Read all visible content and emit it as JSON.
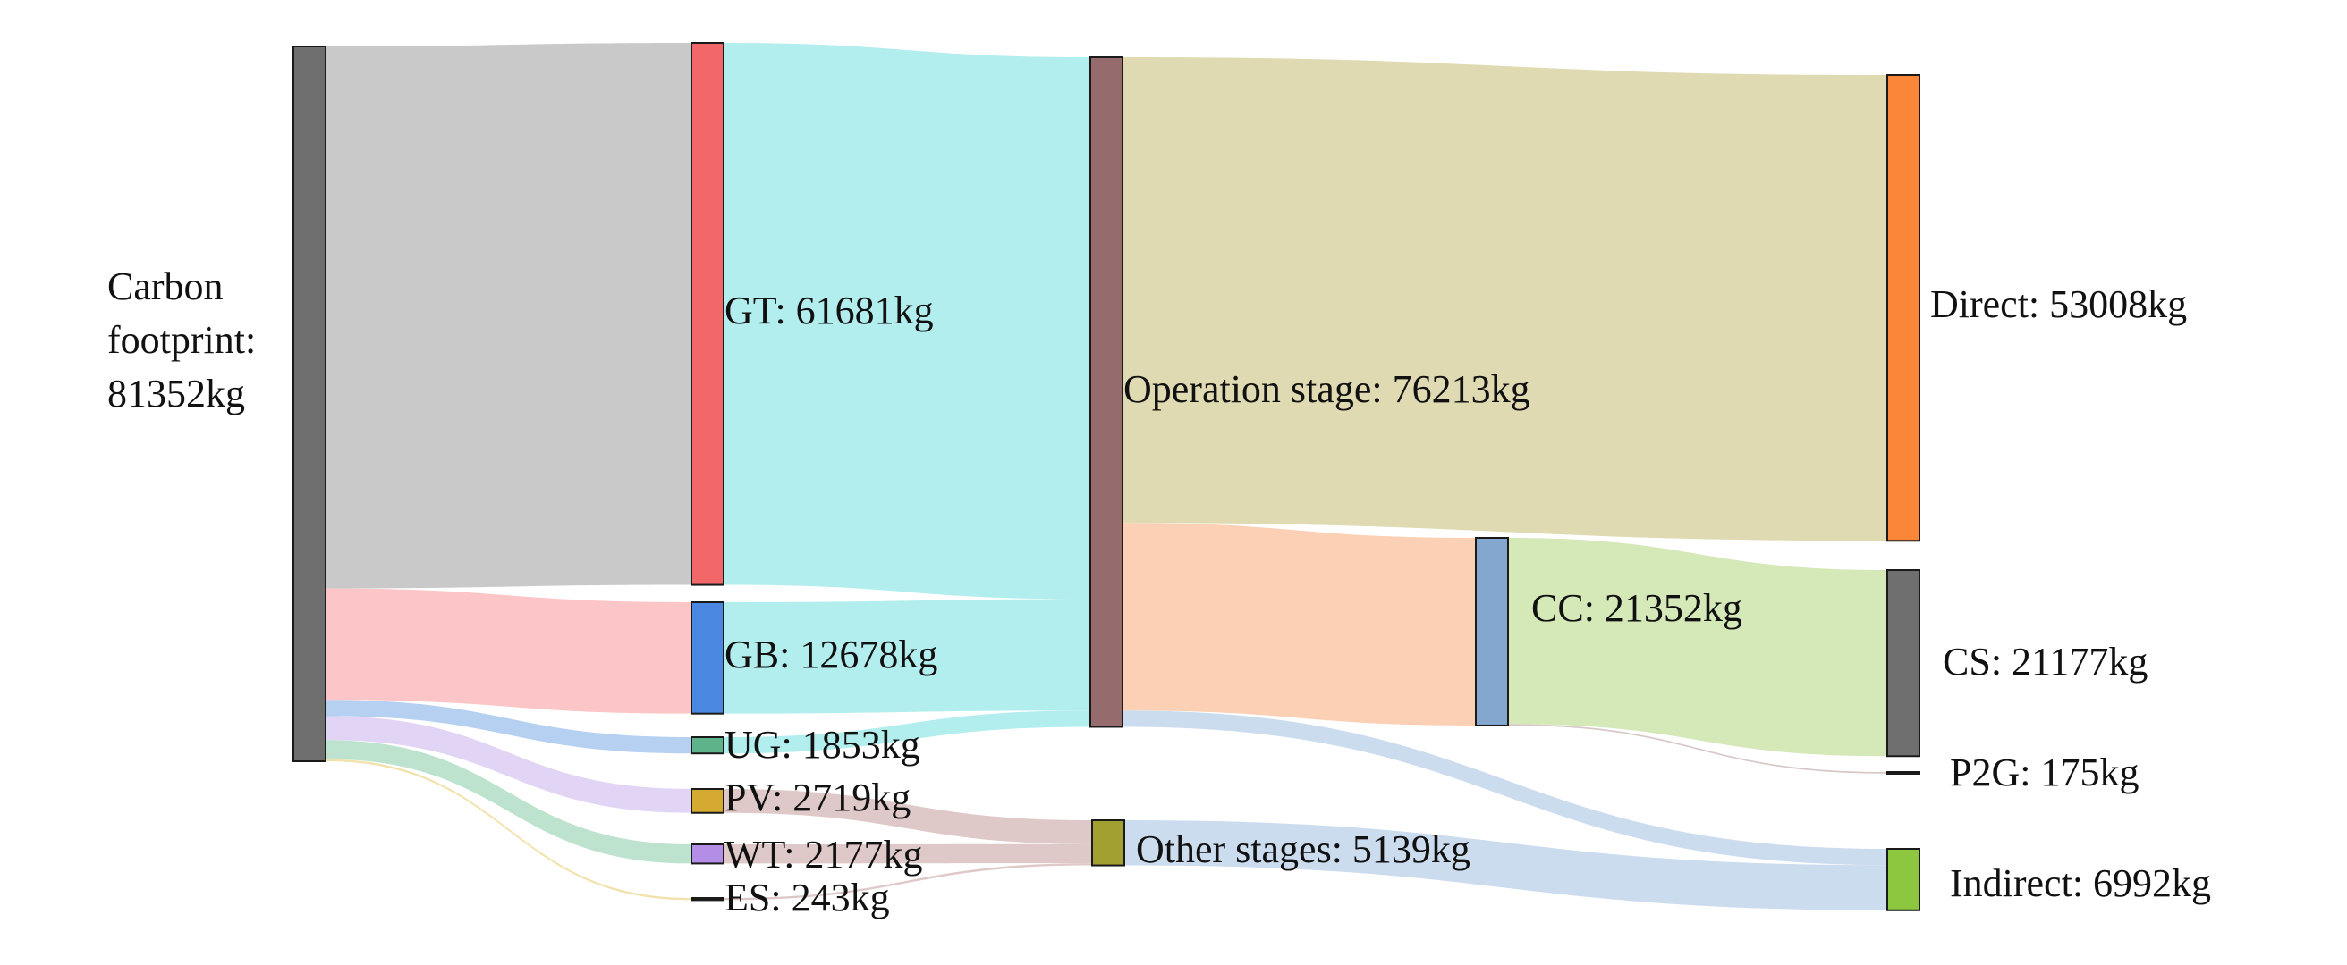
{
  "chart_data": {
    "type": "sankey",
    "units": "kg",
    "nodes": [
      {
        "id": "carbon",
        "label_lines": [
          "Carbon",
          "footprint:",
          "81352kg"
        ],
        "value": 81352,
        "color": "#6f6f6f"
      },
      {
        "id": "gt",
        "label": "GT: 61681kg",
        "value": 61681,
        "color": "#f26868"
      },
      {
        "id": "gb",
        "label": "GB: 12678kg",
        "value": 12678,
        "color": "#4a88e2"
      },
      {
        "id": "ug",
        "label": "UG: 1853kg",
        "value": 1853,
        "color": "#5fb38a"
      },
      {
        "id": "pv",
        "label": "PV: 2719kg",
        "value": 2719,
        "color": "#d5aa30"
      },
      {
        "id": "wt",
        "label": "WT: 2177kg",
        "value": 2177,
        "color": "#b48ee6"
      },
      {
        "id": "es",
        "label": "ES: 243kg",
        "value": 243,
        "color": "#333333"
      },
      {
        "id": "op",
        "label": "Operation stage: 76213kg",
        "value": 76213,
        "color": "#966b6d"
      },
      {
        "id": "other",
        "label": "Other stages: 5139kg",
        "value": 5139,
        "color": "#a3a032"
      },
      {
        "id": "cc",
        "label": "CC: 21352kg",
        "value": 21352,
        "color": "#84a7d0"
      },
      {
        "id": "direct",
        "label": "Direct: 53008kg",
        "value": 53008,
        "color": "#fb8637"
      },
      {
        "id": "cs",
        "label": "CS: 21177kg",
        "value": 21177,
        "color": "#6f6f6f"
      },
      {
        "id": "p2g",
        "label": "P2G: 175kg",
        "value": 175,
        "color": "#333333"
      },
      {
        "id": "indirect",
        "label": "Indirect: 6992kg",
        "value": 6992,
        "color": "#8dc63f"
      }
    ],
    "links": [
      {
        "source": "carbon",
        "target": "gt",
        "value": 61681,
        "color": "#c9c9c9"
      },
      {
        "source": "carbon",
        "target": "gb",
        "value": 12678,
        "color": "#fcc6c8"
      },
      {
        "source": "carbon",
        "target": "ug",
        "value": 1853,
        "color": "#b6d0f2"
      },
      {
        "source": "carbon",
        "target": "pv",
        "value": 2719,
        "color": "#e2d4f4"
      },
      {
        "source": "carbon",
        "target": "wt",
        "value": 2177,
        "color": "#bde3cf"
      },
      {
        "source": "carbon",
        "target": "es",
        "value": 243,
        "color": "#f0e2aa"
      },
      {
        "source": "gt",
        "target": "op",
        "value": 61681,
        "color": "#b3eeee"
      },
      {
        "source": "gb",
        "target": "op",
        "value": 12678,
        "color": "#b3eeee"
      },
      {
        "source": "ug",
        "target": "op",
        "value": 1853,
        "color": "#b3eeee"
      },
      {
        "source": "pv",
        "target": "other",
        "value": 2719,
        "color": "#dec9c8"
      },
      {
        "source": "wt",
        "target": "other",
        "value": 2177,
        "color": "#dec9c8"
      },
      {
        "source": "es",
        "target": "other",
        "value": 243,
        "color": "#dec9c8"
      },
      {
        "source": "op",
        "target": "direct",
        "value": 53008,
        "color": "#dfdab2"
      },
      {
        "source": "op",
        "target": "cc",
        "value": 21352,
        "color": "#fcd0b4"
      },
      {
        "source": "op",
        "target": "indirect",
        "value": 1853,
        "color": "#ccdcef"
      },
      {
        "source": "other",
        "target": "indirect",
        "value": 5139,
        "color": "#ccdcef"
      },
      {
        "source": "cc",
        "target": "cs",
        "value": 21177,
        "color": "#d5e8b7"
      },
      {
        "source": "cc",
        "target": "p2g",
        "value": 175,
        "color": "#d8c8c8"
      }
    ]
  }
}
